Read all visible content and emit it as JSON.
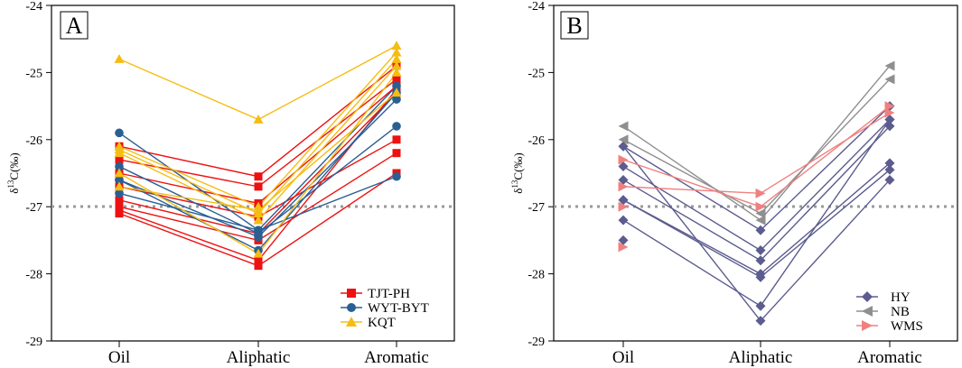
{
  "chart_data": [
    {
      "type": "line",
      "panel": "A",
      "categories": [
        "Oil",
        "Aliphatic",
        "Aromatic"
      ],
      "ylabel": "δ13C(‰)",
      "ylim": [
        -29,
        -24
      ],
      "yticks": [
        -29,
        -28,
        -27,
        -26,
        -25,
        -24
      ],
      "reference_line": -27,
      "legend_position": "bottom-right",
      "series": [
        {
          "name": "TJT-PH",
          "color": "#ee1111",
          "marker": "square",
          "lines": [
            [
              -26.1,
              -26.55,
              -24.9
            ],
            [
              -26.3,
              -26.7,
              -25.1
            ],
            [
              -26.5,
              -26.95,
              -25.2
            ],
            [
              -26.7,
              -27.15,
              -26.0
            ],
            [
              -26.9,
              -27.4,
              -25.3
            ],
            [
              -27.0,
              -27.5,
              -26.2
            ],
            [
              -27.05,
              -27.8,
              -25.25
            ],
            [
              -27.1,
              -27.88,
              -26.5
            ]
          ]
        },
        {
          "name": "WYT-BYT",
          "color": "#2a5f94",
          "marker": "circle",
          "lines": [
            [
              -25.9,
              -27.35,
              -25.2
            ],
            [
              -26.4,
              -27.4,
              -25.8
            ],
            [
              -26.6,
              -27.45,
              -25.4
            ],
            [
              -26.8,
              -27.35,
              -26.55
            ],
            [
              -26.6,
              -27.65,
              -25.3
            ]
          ]
        },
        {
          "name": "KQT",
          "color": "#f5bd12",
          "marker": "triangle",
          "lines": [
            [
              -24.8,
              -25.7,
              -24.6
            ],
            [
              -26.1,
              -27.0,
              -24.7
            ],
            [
              -26.15,
              -27.1,
              -24.8
            ],
            [
              -26.2,
              -27.2,
              -24.9
            ],
            [
              -26.5,
              -27.7,
              -25.0
            ],
            [
              -26.7,
              -27.05,
              -25.3
            ]
          ]
        }
      ]
    },
    {
      "type": "line",
      "panel": "B",
      "categories": [
        "Oil",
        "Aliphatic",
        "Aromatic"
      ],
      "ylabel": "δ13C(‰)",
      "ylim": [
        -29,
        -24
      ],
      "yticks": [
        -29,
        -28,
        -27,
        -26,
        -25,
        -24
      ],
      "reference_line": -27,
      "legend_position": "bottom-right",
      "series": [
        {
          "name": "HY",
          "color": "#5c5c8f",
          "marker": "diamond",
          "lines": [
            [
              -26.1,
              -27.35,
              -25.5
            ],
            [
              -26.4,
              -27.65,
              -25.7
            ],
            [
              -26.6,
              -27.8,
              -25.8
            ],
            [
              -26.9,
              -28.0,
              -26.35
            ],
            [
              -26.9,
              -28.05,
              -26.45
            ],
            [
              -27.2,
              -28.48,
              -25.7
            ],
            [
              -26.1,
              -28.7,
              -26.6
            ]
          ]
        },
        {
          "name": "NB",
          "color": "#8f8f8f",
          "marker": "triangle-left",
          "lines": [
            [
              -25.8,
              -27.2,
              -24.9
            ],
            [
              -26.0,
              -27.1,
              -25.1
            ]
          ]
        },
        {
          "name": "WMS",
          "color": "#f08080",
          "marker": "triangle-right",
          "lines": [
            [
              -26.3,
              -27.0,
              -25.5
            ],
            [
              -26.7,
              -26.8,
              -25.6
            ]
          ]
        }
      ],
      "extra_points": [
        {
          "series": "HY",
          "x": "Oil",
          "y": -27.5
        },
        {
          "series": "WMS",
          "x": "Oil",
          "y": -27.6
        },
        {
          "series": "WMS",
          "x": "Oil",
          "y": -27.0
        }
      ]
    }
  ]
}
